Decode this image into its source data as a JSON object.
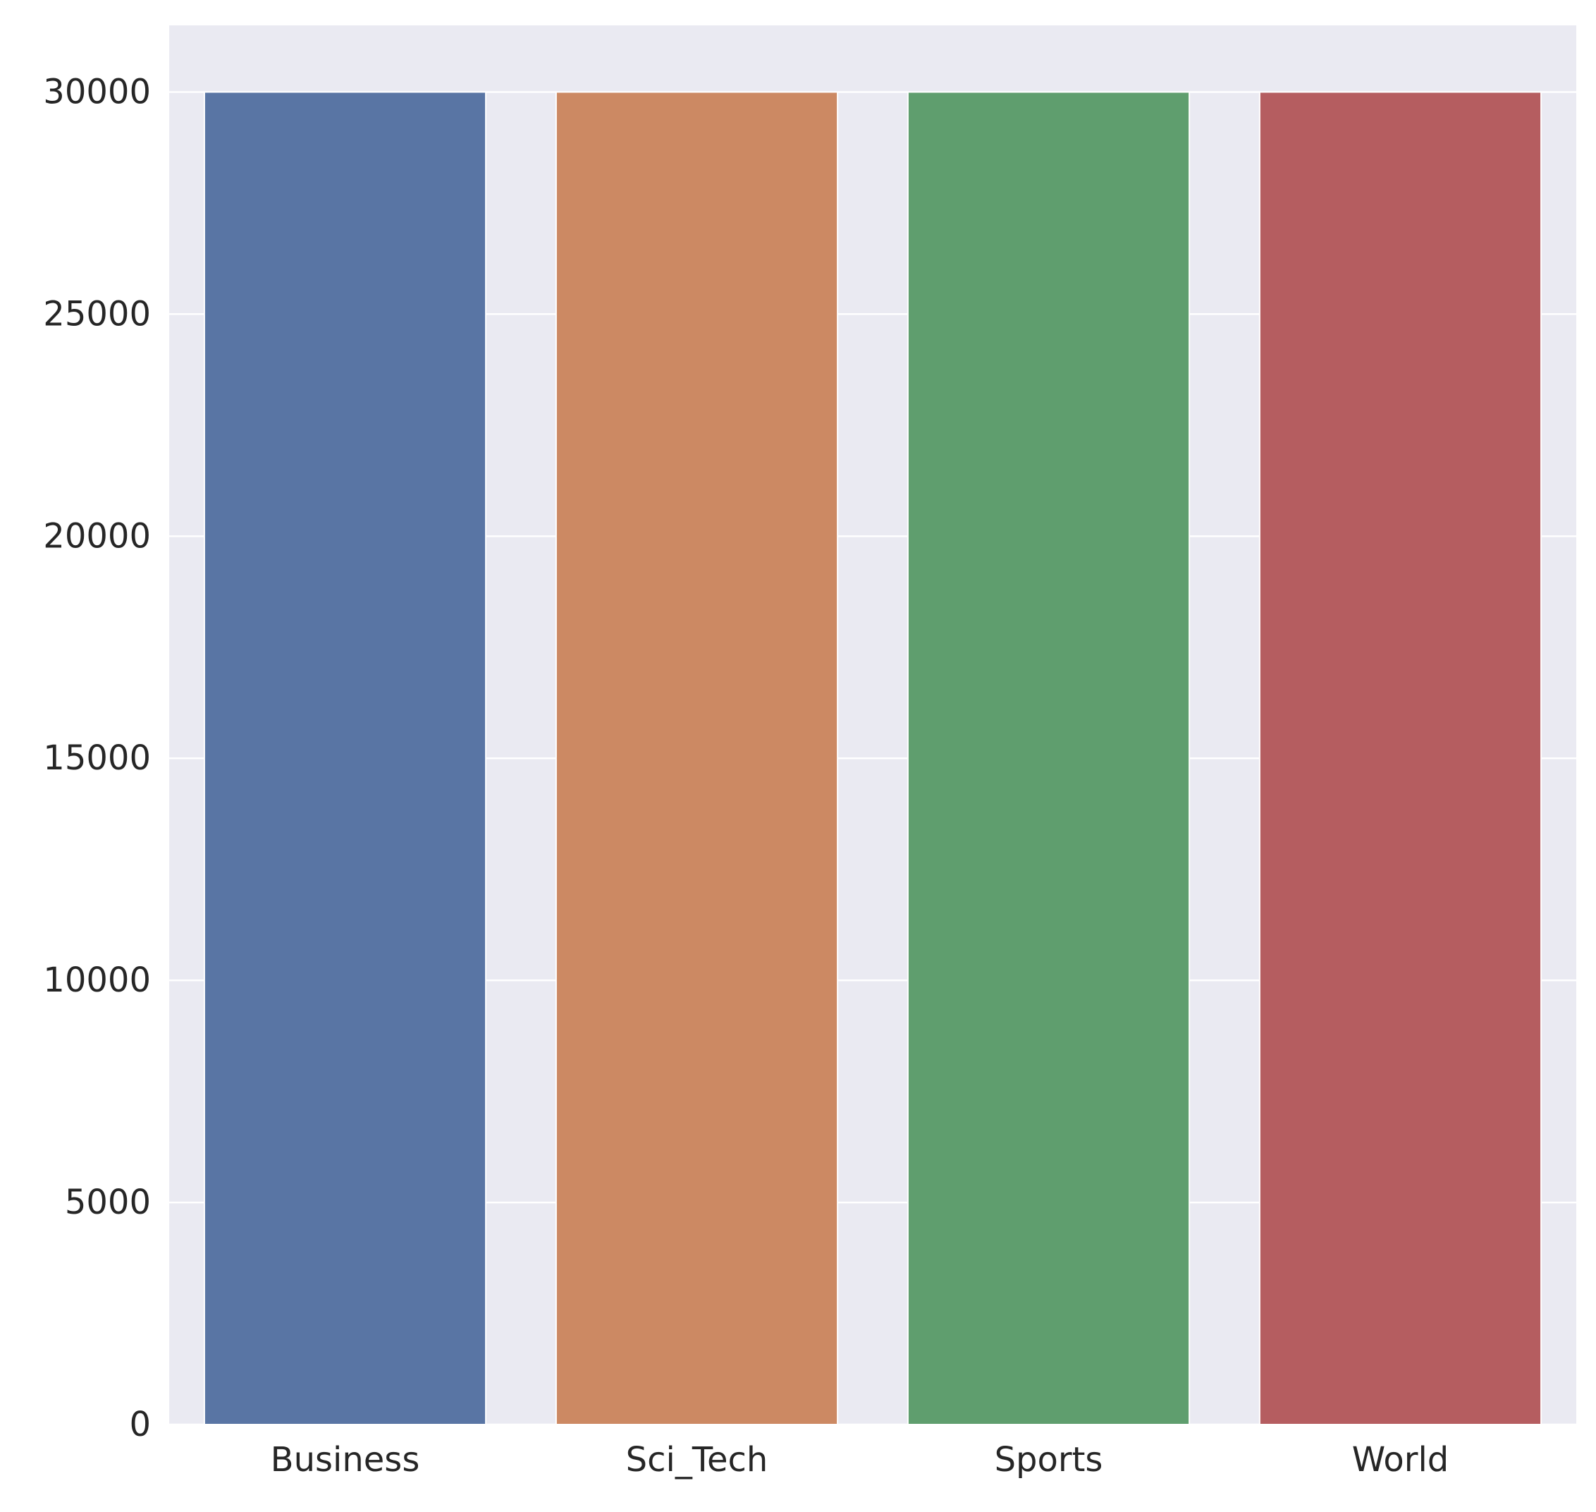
{
  "chart_data": {
    "type": "bar",
    "title": "",
    "xlabel": "",
    "ylabel": "",
    "categories": [
      "Business",
      "Sci_Tech",
      "Sports",
      "World"
    ],
    "values": [
      30000,
      30000,
      30000,
      30000
    ],
    "colors": [
      "#5975a4",
      "#cc8963",
      "#5f9e6e",
      "#b55d60"
    ],
    "ylim": [
      0,
      31500
    ],
    "yticks": [
      0,
      5000,
      10000,
      15000,
      20000,
      25000,
      30000
    ],
    "ytick_labels": [
      "0",
      "5000",
      "10000",
      "15000",
      "20000",
      "25000",
      "30000"
    ],
    "grid": true,
    "background": "#eaeaf2",
    "grid_color": "#ffffff"
  }
}
